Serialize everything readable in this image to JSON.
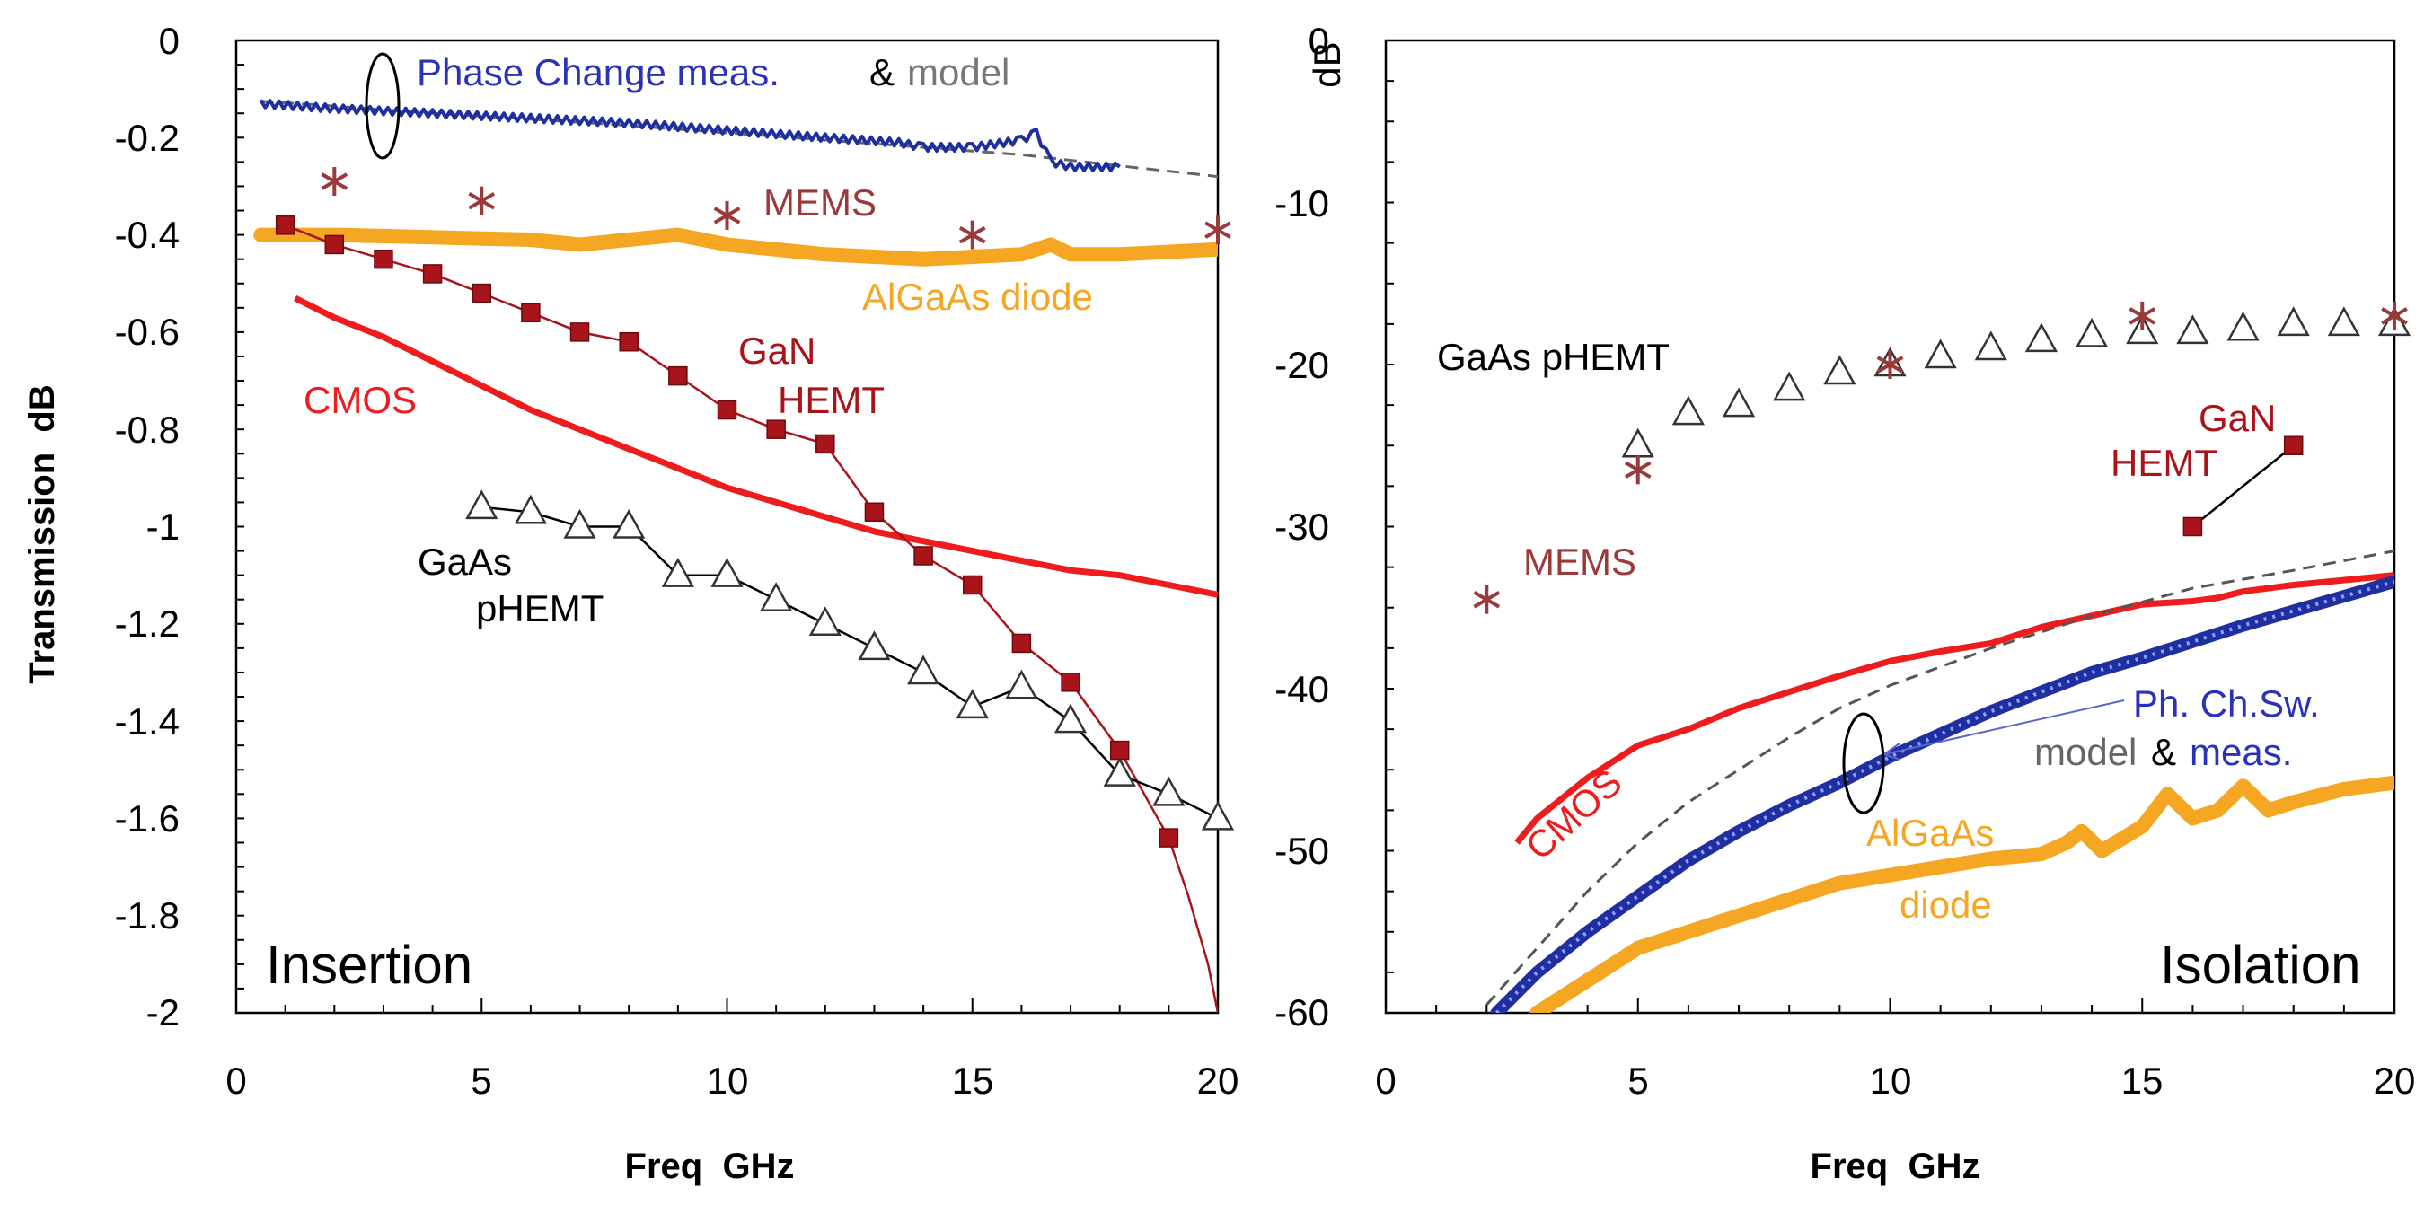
{
  "chart_data": [
    {
      "type": "line",
      "panel": "left",
      "corner_label": "Insertion",
      "xlabel": "Freq  GHz",
      "ylabel": "Transmission  dB",
      "xlim": [
        0,
        20
      ],
      "ylim": [
        -2,
        0
      ],
      "xticks": [
        "0",
        "5",
        "10",
        "15",
        "20"
      ],
      "yticks": [
        "0",
        "-0.2",
        "-0.4",
        "-0.6",
        "-0.8",
        "-1",
        "-1.2",
        "-1.4",
        "-1.6",
        "-1.8",
        "-2"
      ],
      "annotations": {
        "phase_meas": "Phase Change meas.",
        "amp": "&",
        "model": "model",
        "mems": "MEMS",
        "algaas": "AlGaAs diode",
        "cmos": "CMOS",
        "gan": "GaN",
        "hemt": "HEMT",
        "gaas": "GaAs",
        "phemt": "pHEMT"
      },
      "series": [
        {
          "name": "Phase Change model",
          "style": "dashed",
          "color": "#666666",
          "x": [
            0.5,
            2,
            4,
            6,
            8,
            10,
            12,
            14,
            16,
            18,
            20
          ],
          "y": [
            -0.125,
            -0.135,
            -0.15,
            -0.162,
            -0.175,
            -0.19,
            -0.205,
            -0.22,
            -0.235,
            -0.258,
            -0.28
          ]
        },
        {
          "name": "Phase Change meas.",
          "style": "noisy",
          "color": "#1f2fa0",
          "x": [
            0.5,
            2,
            4,
            6,
            8,
            10,
            12,
            13.5,
            14,
            15,
            16,
            16.3,
            16.6,
            17,
            18
          ],
          "y": [
            -0.13,
            -0.14,
            -0.15,
            -0.16,
            -0.17,
            -0.185,
            -0.2,
            -0.21,
            -0.22,
            -0.22,
            -0.205,
            -0.19,
            -0.25,
            -0.26,
            -0.26
          ]
        },
        {
          "name": "MEMS",
          "style": "star-markers",
          "color": "#9a3a3a",
          "x": [
            2,
            5,
            10,
            15,
            20
          ],
          "y": [
            -0.29,
            -0.33,
            -0.36,
            -0.4,
            -0.39
          ]
        },
        {
          "name": "AlGaAs diode",
          "style": "thick",
          "color": "#f5a623",
          "x": [
            0.5,
            2,
            4,
            6,
            7,
            8,
            9,
            10,
            12,
            14,
            15,
            16,
            16.6,
            17,
            18,
            20
          ],
          "y": [
            -0.4,
            -0.4,
            -0.405,
            -0.41,
            -0.42,
            -0.41,
            -0.4,
            -0.42,
            -0.44,
            -0.45,
            -0.445,
            -0.44,
            -0.42,
            -0.44,
            -0.44,
            -0.43
          ]
        },
        {
          "name": "CMOS",
          "style": "line",
          "color": "#ee1c1c",
          "x": [
            1.2,
            2,
            3,
            4,
            5,
            6,
            7,
            8,
            9,
            10,
            11,
            12,
            13,
            14,
            15,
            16,
            17,
            18,
            19,
            20
          ],
          "y": [
            -0.53,
            -0.57,
            -0.61,
            -0.66,
            -0.71,
            -0.76,
            -0.8,
            -0.84,
            -0.88,
            -0.92,
            -0.95,
            -0.98,
            -1.01,
            -1.03,
            -1.05,
            -1.07,
            -1.09,
            -1.1,
            -1.12,
            -1.14
          ]
        },
        {
          "name": "GaN HEMT",
          "style": "square-markers",
          "color": "#a8141a",
          "x": [
            1,
            2,
            3,
            4,
            5,
            6,
            7,
            8,
            9,
            10,
            11,
            12,
            13,
            14,
            15,
            16,
            17,
            18,
            19
          ],
          "y": [
            -0.38,
            -0.42,
            -0.45,
            -0.48,
            -0.52,
            -0.56,
            -0.6,
            -0.62,
            -0.69,
            -0.76,
            -0.8,
            -0.83,
            -0.97,
            -1.06,
            -1.12,
            -1.24,
            -1.32,
            -1.46,
            -1.64
          ]
        },
        {
          "name": "GaN HEMT fit",
          "style": "thin",
          "color": "#a8141a",
          "x": [
            19,
            19.4,
            19.8,
            20
          ],
          "y": [
            -1.64,
            -1.76,
            -1.9,
            -2.0
          ]
        },
        {
          "name": "GaAs pHEMT",
          "style": "triangle-markers",
          "color": "#000000",
          "x": [
            5,
            6,
            7,
            8,
            9,
            10,
            11,
            12,
            13,
            14,
            15,
            16,
            17,
            18,
            19,
            20
          ],
          "y": [
            -0.96,
            -0.97,
            -1.0,
            -1.0,
            -1.1,
            -1.1,
            -1.15,
            -1.2,
            -1.25,
            -1.3,
            -1.37,
            -1.33,
            -1.4,
            -1.51,
            -1.55,
            -1.6
          ]
        }
      ]
    },
    {
      "type": "line",
      "panel": "right",
      "corner_label": "Isolation",
      "xlabel": "Freq  GHz",
      "ylabel": "dB",
      "xlim": [
        0,
        20
      ],
      "ylim": [
        -60,
        0
      ],
      "xticks": [
        "0",
        "5",
        "10",
        "15",
        "20"
      ],
      "yticks": [
        "0",
        "-10",
        "-20",
        "-30",
        "-40",
        "-50",
        "-60"
      ],
      "annotations": {
        "gaas_phemt": "GaAs pHEMT",
        "gan": "GaN",
        "hemt": "HEMT",
        "mems": "MEMS",
        "phsw": "Ph. Ch.Sw.",
        "model": "model",
        "amp": "&",
        "meas": "meas.",
        "cmos": "CMOS",
        "algaas": "AlGaAs",
        "diode": "diode"
      },
      "series": [
        {
          "name": "GaAs pHEMT",
          "style": "triangle-markers",
          "color": "#000000",
          "x": [
            5,
            6,
            7,
            8,
            9,
            10,
            11,
            12,
            13,
            14,
            15,
            16,
            17,
            18,
            19,
            20
          ],
          "y": [
            -25,
            -23,
            -22.5,
            -21.5,
            -20.5,
            -20,
            -19.5,
            -19,
            -18.5,
            -18.2,
            -18,
            -18,
            -17.8,
            -17.5,
            -17.5,
            -17.5
          ]
        },
        {
          "name": "MEMS",
          "style": "star-markers",
          "color": "#9a3a3a",
          "x": [
            2,
            5,
            10,
            15,
            20
          ],
          "y": [
            -34.5,
            -26.5,
            -20,
            -17,
            -17
          ]
        },
        {
          "name": "GaN HEMT",
          "style": "square-markers",
          "color": "#a8141a",
          "x": [
            16,
            18
          ],
          "y": [
            -30,
            -25
          ]
        },
        {
          "name": "CMOS",
          "style": "line",
          "color": "#ee1c1c",
          "x": [
            2.6,
            3,
            4,
            5,
            6,
            7,
            8,
            9,
            10,
            11,
            12,
            13,
            14,
            15,
            16,
            16.5,
            17,
            18,
            19,
            20
          ],
          "y": [
            -49.5,
            -48,
            -45.5,
            -43.5,
            -42.5,
            -41.2,
            -40.2,
            -39.2,
            -38.3,
            -37.7,
            -37.2,
            -36.2,
            -35.5,
            -34.8,
            -34.6,
            -34.4,
            -34,
            -33.6,
            -33.3,
            -33
          ]
        },
        {
          "name": "Ph. Ch.Sw. model",
          "style": "dashed",
          "color": "#555555",
          "x": [
            2,
            3,
            4,
            5,
            6,
            7,
            8,
            9,
            10,
            12,
            14,
            16,
            18,
            20
          ],
          "y": [
            -59.5,
            -56,
            -52.5,
            -49.5,
            -47,
            -45,
            -43,
            -41.2,
            -39.8,
            -37.5,
            -35.5,
            -33.8,
            -32.7,
            -31.5
          ]
        },
        {
          "name": "Ph. Ch.Sw. meas.",
          "style": "thick-beaded",
          "color": "#1f2fa0",
          "x": [
            2.2,
            3,
            4,
            5,
            6,
            7,
            8,
            9,
            10,
            11,
            12,
            13,
            14,
            15,
            16,
            17,
            18,
            19,
            20
          ],
          "y": [
            -60,
            -57.5,
            -55,
            -52.8,
            -50.6,
            -48.8,
            -47.2,
            -45.8,
            -44.2,
            -42.8,
            -41.4,
            -40.2,
            -39,
            -38.1,
            -37.1,
            -36.1,
            -35.2,
            -34.3,
            -33.4
          ]
        },
        {
          "name": "AlGaAs diode",
          "style": "thick",
          "color": "#f5a623",
          "x": [
            3,
            4,
            5,
            6,
            7,
            8,
            9,
            10,
            11,
            12,
            13,
            13.5,
            13.8,
            14.2,
            15,
            15.5,
            16,
            16.5,
            17,
            17.5,
            18,
            19,
            20
          ],
          "y": [
            -60,
            -58,
            -56,
            -55,
            -54,
            -53,
            -52,
            -51.5,
            -51,
            -50.5,
            -50.2,
            -49.5,
            -48.8,
            -50,
            -48.5,
            -46.5,
            -48,
            -47.5,
            -46,
            -47.5,
            -47,
            -46.2,
            -45.8
          ]
        }
      ]
    }
  ]
}
